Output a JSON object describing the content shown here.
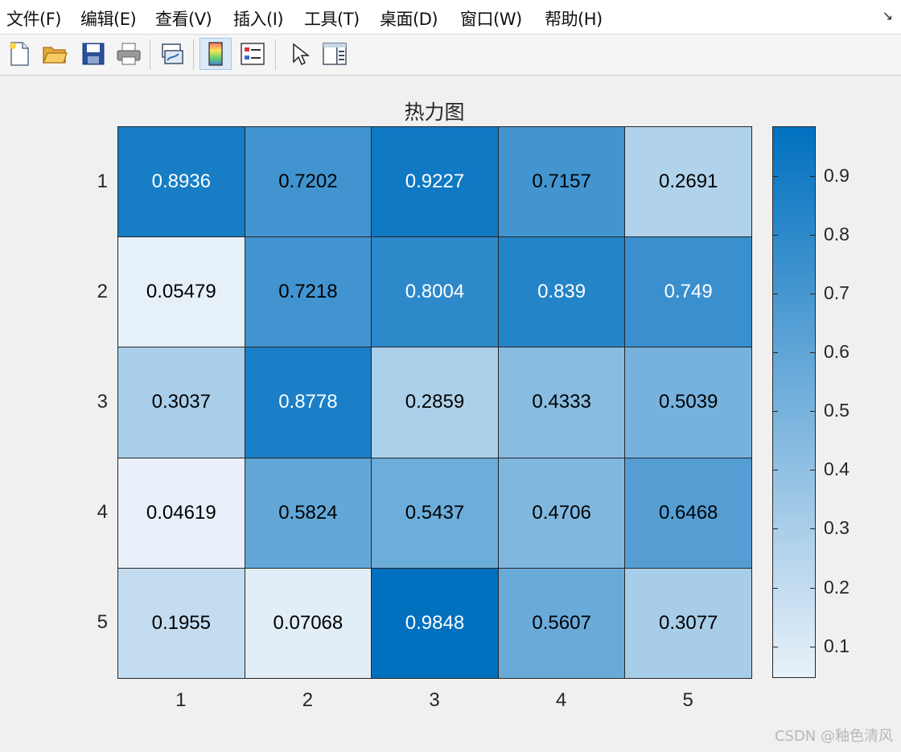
{
  "menubar": {
    "items": [
      "文件(F)",
      "编辑(E)",
      "查看(V)",
      "插入(I)",
      "工具(T)",
      "桌面(D)",
      "窗口(W)",
      "帮助(H)"
    ],
    "corner": "↘"
  },
  "toolbar": {
    "buttons": [
      {
        "icon": "new-file-icon"
      },
      {
        "icon": "open-folder-icon"
      },
      {
        "icon": "save-icon"
      },
      {
        "icon": "print-icon"
      },
      {
        "icon": "link-plot-icon"
      },
      {
        "icon": "colorbar-icon",
        "active": true
      },
      {
        "icon": "legend-icon"
      },
      {
        "icon": "pointer-icon"
      },
      {
        "icon": "property-editor-icon"
      }
    ]
  },
  "chart_data": {
    "type": "heatmap",
    "title": "热力图",
    "x_categories": [
      "1",
      "2",
      "3",
      "4",
      "5"
    ],
    "y_categories": [
      "1",
      "2",
      "3",
      "4",
      "5"
    ],
    "values": [
      [
        "0.8936",
        "0.7202",
        "0.9227",
        "0.7157",
        "0.2691"
      ],
      [
        "0.05479",
        "0.7218",
        "0.8004",
        "0.839",
        "0.749"
      ],
      [
        "0.3037",
        "0.8778",
        "0.2859",
        "0.4333",
        "0.5039"
      ],
      [
        "0.04619",
        "0.5824",
        "0.5437",
        "0.4706",
        "0.6468"
      ],
      [
        "0.1955",
        "0.07068",
        "0.9848",
        "0.5607",
        "0.3077"
      ]
    ],
    "colorbar": {
      "range": [
        0.04619,
        0.9848
      ],
      "ticks": [
        "0.1",
        "0.2",
        "0.3",
        "0.4",
        "0.5",
        "0.6",
        "0.7",
        "0.8",
        "0.9"
      ],
      "colormap_low": "#e8f1f9",
      "colormap_high": "#0070bf"
    },
    "text_dark": "#000000",
    "text_light": "#ffffff"
  },
  "watermark": "CSDN @釉色清风"
}
